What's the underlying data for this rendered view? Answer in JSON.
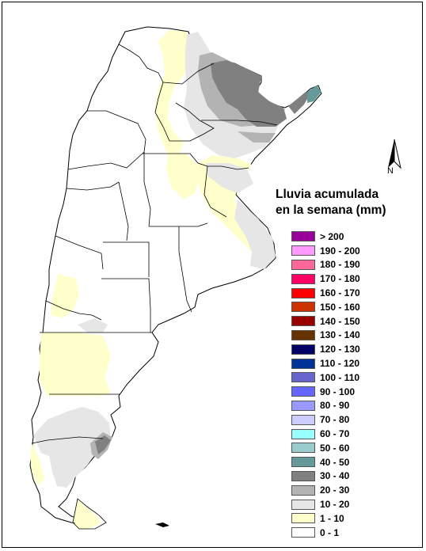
{
  "map": {
    "north_label": "N",
    "legend_title_line1": "Lluvia acumulada",
    "legend_title_line2": "en la semana (mm)",
    "legend": [
      {
        "label": "> 200",
        "color": "#990099"
      },
      {
        "label": "190 - 200",
        "color": "#ff99ff"
      },
      {
        "label": "180 - 190",
        "color": "#ff6699"
      },
      {
        "label": "170 - 180",
        "color": "#ff0066"
      },
      {
        "label": "160 - 170",
        "color": "#ff0000"
      },
      {
        "label": "150 - 160",
        "color": "#cc3300"
      },
      {
        "label": "140 - 150",
        "color": "#990000"
      },
      {
        "label": "130 - 140",
        "color": "#663300"
      },
      {
        "label": "120 - 130",
        "color": "#000066"
      },
      {
        "label": "110 - 120",
        "color": "#003399"
      },
      {
        "label": "100 - 110",
        "color": "#6666cc"
      },
      {
        "label": "90 - 100",
        "color": "#6666ff"
      },
      {
        "label": "80 - 90",
        "color": "#9999ff"
      },
      {
        "label": "70 - 80",
        "color": "#ccccff"
      },
      {
        "label": "60 - 70",
        "color": "#99ffff"
      },
      {
        "label": "50 - 60",
        "color": "#99cccc"
      },
      {
        "label": "40 - 50",
        "color": "#669999"
      },
      {
        "label": "30 - 40",
        "color": "#808080"
      },
      {
        "label": "20 - 30",
        "color": "#b3b3b3"
      },
      {
        "label": "10 - 20",
        "color": "#e6e6e6"
      },
      {
        "label": "1 - 10",
        "color": "#ffffcc"
      },
      {
        "label": "0 - 1",
        "color": "#ffffff"
      }
    ]
  }
}
